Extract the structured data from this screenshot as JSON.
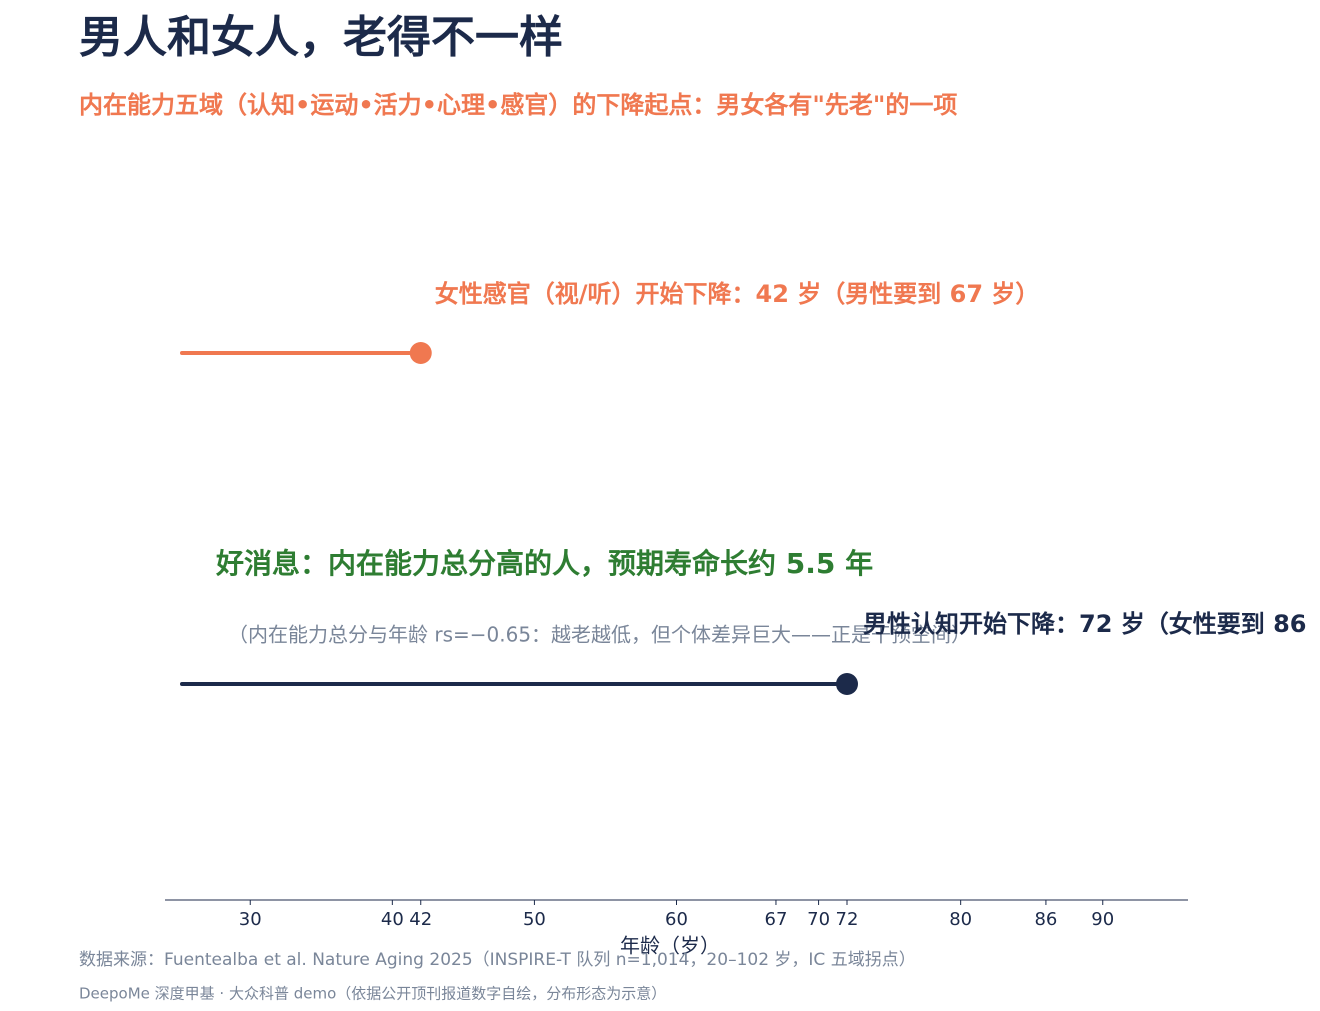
{
  "chart_data": {
    "type": "lollipop",
    "title": "男人和女人，老得不一样",
    "subtitle": "内在能力五域（认知•运动•活力•心理•感官）的下降起点：男女各有\"先老\"的一项",
    "series": [
      {
        "color": "#f07850",
        "values": [
          42
        ],
        "label": "女性感官（视/听）开始下降：42 岁（男性要到 67 岁）"
      },
      {
        "color": "#1c2a4a",
        "values": [
          72
        ],
        "label": "男性认知开始下降：72 岁（女性要到 86"
      }
    ],
    "headline": "好消息：内在能力总分高的人，预期寿命长约 5.5 年",
    "note": "（内在能力总分与年龄 rs=−0.65：越老越低，但个体差异巨大——正是干预空间）",
    "headline_color": "#2e7d32",
    "xlabel": "年龄（岁）",
    "xlim": [
      24,
      96
    ],
    "xticks": [
      30,
      40,
      42,
      50,
      60,
      67,
      70,
      72,
      80,
      86,
      90
    ],
    "source": "数据来源：Fuentealba et al. Nature Aging 2025（INSPIRE-T 队列 n=1,014，20–102 岁，IC 五域拐点）",
    "footer": "DeepoMe 深度甲基 · 大众科普 demo（依据公开顶刊报道数字自绘，分布形态为示意）"
  }
}
